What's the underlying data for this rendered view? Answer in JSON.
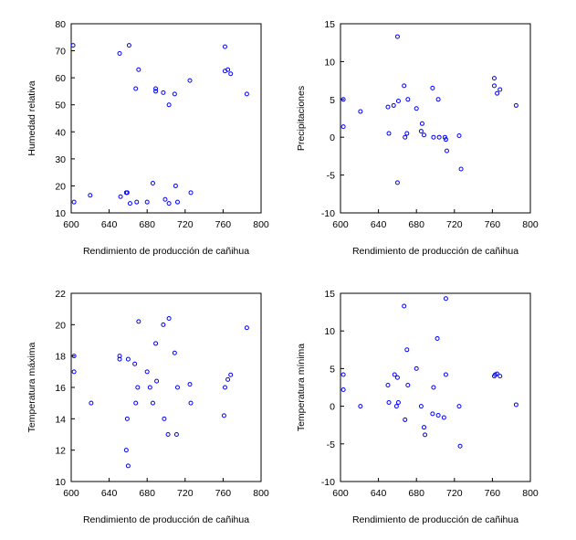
{
  "chart_data": [
    {
      "type": "scatter",
      "xlabel": "Rendimiento de producción de cañihua",
      "ylabel": "Humedad relativa",
      "xlim": [
        600,
        800
      ],
      "ylim": [
        10,
        80
      ],
      "xticks": [
        "600",
        "640",
        "680",
        "720",
        "760",
        "800"
      ],
      "yticks": [
        "10",
        "20",
        "30",
        "40",
        "50",
        "60",
        "70",
        "80"
      ],
      "marker_color": "#0000ff",
      "points": [
        [
          602,
          72
        ],
        [
          603,
          14
        ],
        [
          620,
          16.5
        ],
        [
          651,
          69
        ],
        [
          652,
          16
        ],
        [
          658,
          17.5
        ],
        [
          659,
          17.5
        ],
        [
          661,
          72
        ],
        [
          662,
          13.5
        ],
        [
          668,
          56
        ],
        [
          669,
          14
        ],
        [
          671,
          63
        ],
        [
          680,
          14
        ],
        [
          686,
          21
        ],
        [
          689,
          56
        ],
        [
          689,
          55
        ],
        [
          697,
          54.5
        ],
        [
          699,
          15
        ],
        [
          703,
          50
        ],
        [
          703,
          13.5
        ],
        [
          709,
          54
        ],
        [
          710,
          20
        ],
        [
          712,
          14
        ],
        [
          725,
          59
        ],
        [
          726,
          17.5
        ],
        [
          762,
          71.5
        ],
        [
          762,
          62.5
        ],
        [
          765,
          63
        ],
        [
          768,
          61.5
        ],
        [
          785,
          54
        ]
      ]
    },
    {
      "type": "scatter",
      "xlabel": "Rendimiento de producción de cañihua",
      "ylabel": "Precipitaciones",
      "xlim": [
        600,
        800
      ],
      "ylim": [
        -10,
        15
      ],
      "xticks": [
        "600",
        "640",
        "680",
        "720",
        "760",
        "800"
      ],
      "yticks": [
        "-10",
        "-5",
        "0",
        "5",
        "10",
        "15"
      ],
      "marker_color": "#0000ff",
      "points": [
        [
          603,
          5
        ],
        [
          603,
          1.4
        ],
        [
          621,
          3.4
        ],
        [
          650,
          4
        ],
        [
          651,
          0.5
        ],
        [
          656,
          4.2
        ],
        [
          660,
          13.3
        ],
        [
          660,
          -6
        ],
        [
          661,
          4.8
        ],
        [
          667,
          6.8
        ],
        [
          668,
          0
        ],
        [
          670,
          0.5
        ],
        [
          671,
          5
        ],
        [
          680,
          3.8
        ],
        [
          685,
          0.8
        ],
        [
          686,
          1.8
        ],
        [
          688,
          0.3
        ],
        [
          697,
          6.5
        ],
        [
          698,
          0
        ],
        [
          703,
          5
        ],
        [
          704,
          0
        ],
        [
          710,
          0
        ],
        [
          711,
          -0.3
        ],
        [
          712,
          -1.8
        ],
        [
          725,
          0.2
        ],
        [
          727,
          -4.2
        ],
        [
          762,
          7.8
        ],
        [
          762,
          6.8
        ],
        [
          765,
          5.8
        ],
        [
          768,
          6.3
        ],
        [
          785,
          4.2
        ]
      ]
    },
    {
      "type": "scatter",
      "xlabel": "Rendimiento de producción de cañihua",
      "ylabel": "Temperatura máxima",
      "xlim": [
        600,
        800
      ],
      "ylim": [
        10,
        22
      ],
      "xticks": [
        "600",
        "640",
        "680",
        "720",
        "760",
        "800"
      ],
      "yticks": [
        "10",
        "12",
        "14",
        "16",
        "18",
        "20",
        "22"
      ],
      "marker_color": "#0000ff",
      "points": [
        [
          603,
          18
        ],
        [
          603,
          17
        ],
        [
          621,
          15
        ],
        [
          651,
          18
        ],
        [
          651,
          17.8
        ],
        [
          658,
          12
        ],
        [
          659,
          14
        ],
        [
          660,
          11
        ],
        [
          660,
          17.8
        ],
        [
          667,
          17.5
        ],
        [
          668,
          15
        ],
        [
          670,
          16
        ],
        [
          671,
          20.2
        ],
        [
          680,
          17
        ],
        [
          683,
          16
        ],
        [
          686,
          15
        ],
        [
          689,
          18.8
        ],
        [
          690,
          16.4
        ],
        [
          697,
          20
        ],
        [
          698,
          14
        ],
        [
          702,
          13
        ],
        [
          703,
          20.4
        ],
        [
          709,
          18.2
        ],
        [
          711,
          13
        ],
        [
          712,
          16
        ],
        [
          725,
          16.2
        ],
        [
          726,
          15
        ],
        [
          761,
          14.2
        ],
        [
          762,
          16
        ],
        [
          765,
          16.5
        ],
        [
          768,
          16.8
        ],
        [
          785,
          19.8
        ]
      ]
    },
    {
      "type": "scatter",
      "xlabel": "Rendimiento de producción de cañihua",
      "ylabel": "Temperatura mínima",
      "xlim": [
        600,
        800
      ],
      "ylim": [
        -10,
        15
      ],
      "xticks": [
        "600",
        "640",
        "680",
        "720",
        "760",
        "800"
      ],
      "yticks": [
        "-10",
        "-5",
        "0",
        "5",
        "10",
        "15"
      ],
      "marker_color": "#0000ff",
      "points": [
        [
          603,
          4.2
        ],
        [
          603,
          2.2
        ],
        [
          621,
          0
        ],
        [
          650,
          2.8
        ],
        [
          651,
          0.5
        ],
        [
          657,
          4.2
        ],
        [
          659,
          0
        ],
        [
          660,
          3.8
        ],
        [
          661,
          0.5
        ],
        [
          667,
          13.3
        ],
        [
          668,
          -1.8
        ],
        [
          670,
          7.5
        ],
        [
          671,
          2.8
        ],
        [
          680,
          5
        ],
        [
          685,
          0
        ],
        [
          688,
          -2.8
        ],
        [
          689,
          -3.8
        ],
        [
          697,
          -1
        ],
        [
          698,
          2.5
        ],
        [
          702,
          9
        ],
        [
          703,
          -1.2
        ],
        [
          709,
          -1.5
        ],
        [
          711,
          14.3
        ],
        [
          711,
          4.2
        ],
        [
          725,
          0
        ],
        [
          726,
          -5.3
        ],
        [
          762,
          4
        ],
        [
          763,
          4.2
        ],
        [
          765,
          4.3
        ],
        [
          768,
          4
        ],
        [
          785,
          0.2
        ]
      ]
    }
  ]
}
